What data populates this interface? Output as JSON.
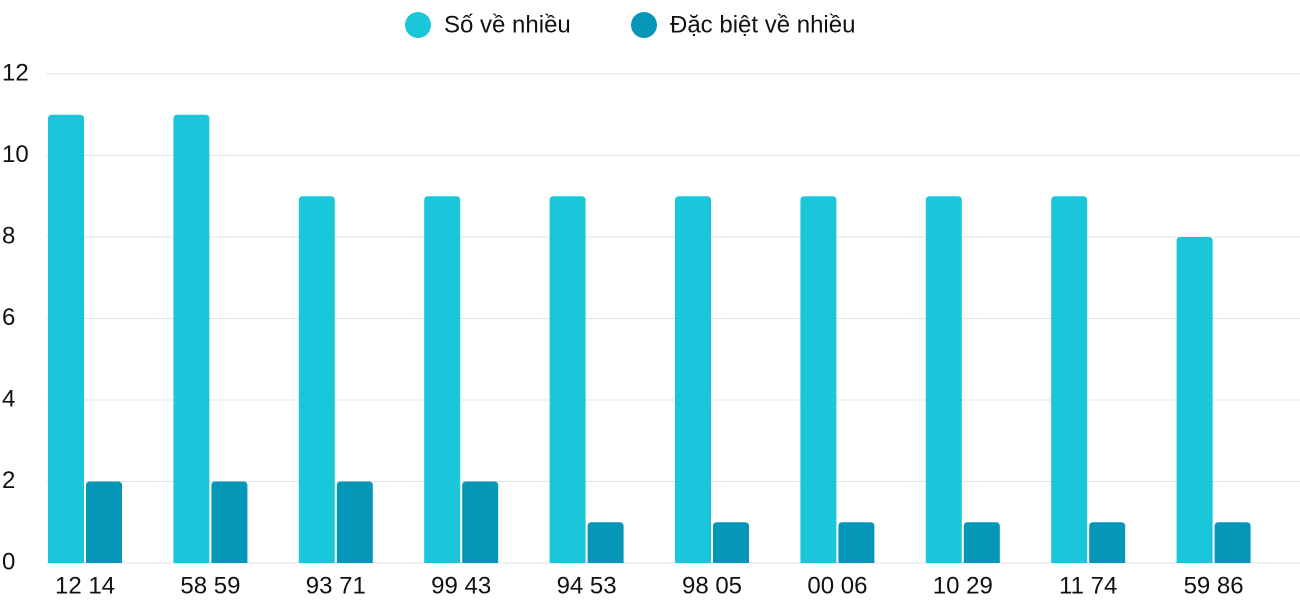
{
  "chart_data": {
    "type": "bar",
    "categories": [
      "12 14",
      "58 59",
      "93 71",
      "99 43",
      "94 53",
      "98 05",
      "00 06",
      "10 29",
      "11 74",
      "59 86"
    ],
    "series": [
      {
        "name": "Số về nhiều",
        "color": "#1ac6da",
        "values": [
          11,
          11,
          9,
          9,
          9,
          9,
          9,
          9,
          9,
          8
        ]
      },
      {
        "name": "Đặc biệt về nhiều",
        "color": "#0696b8",
        "values": [
          2,
          2,
          2,
          2,
          1,
          1,
          1,
          1,
          1,
          1
        ]
      }
    ],
    "ylim": [
      0,
      12
    ],
    "yticks": [
      0,
      2,
      4,
      6,
      8,
      10,
      12
    ],
    "grid": true,
    "legend": "top"
  }
}
